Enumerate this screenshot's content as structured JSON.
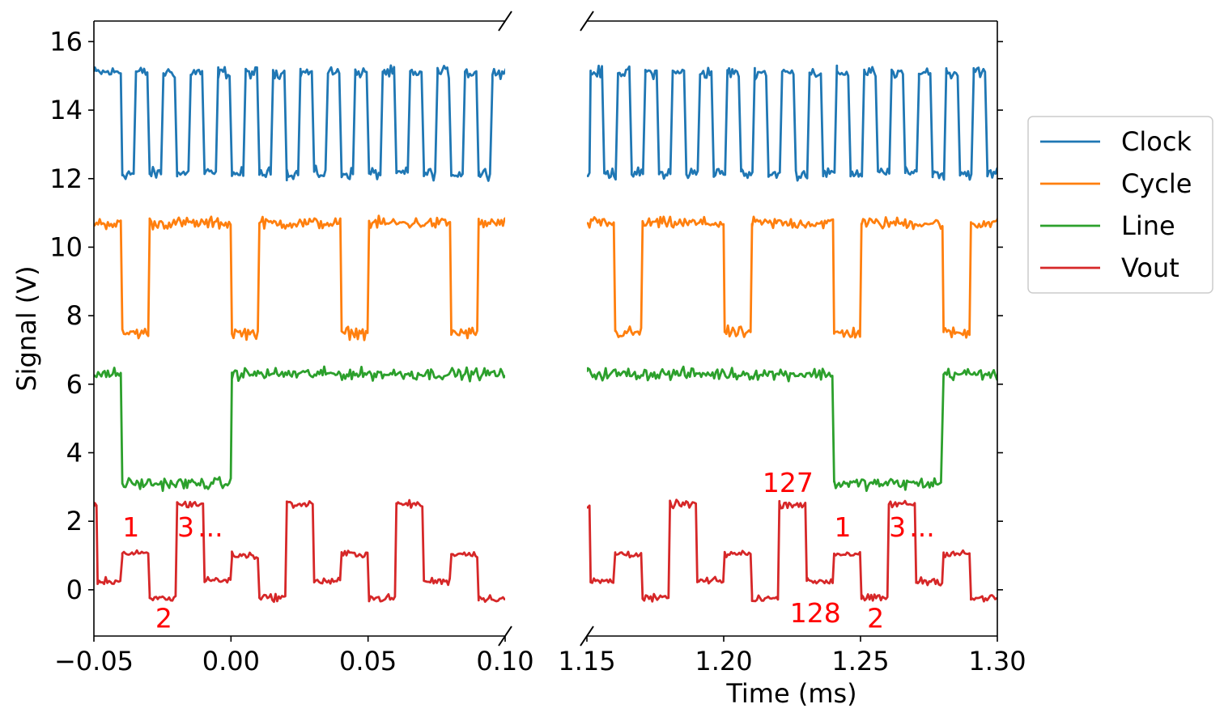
{
  "chart_data": {
    "type": "line",
    "title": "",
    "xlabel": "Time (ms)",
    "ylabel": "Signal (V)",
    "ylim": [
      -1.35,
      16.6
    ],
    "yticks": [
      0,
      2,
      4,
      6,
      8,
      10,
      12,
      14,
      16
    ],
    "grid": false,
    "legend_position": "right",
    "panels": [
      {
        "name": "left",
        "xlim": [
          -0.05,
          0.1
        ],
        "xticks": [
          -0.05,
          0.0,
          0.05,
          0.1
        ],
        "xtick_labels": [
          "−0.05",
          "0.00",
          "0.05",
          "0.10"
        ]
      },
      {
        "name": "right",
        "xlim": [
          1.15,
          1.3
        ],
        "xticks": [
          1.15,
          1.2,
          1.25,
          1.3
        ],
        "xtick_labels": [
          "1.15",
          "1.20",
          "1.25",
          "1.30"
        ]
      }
    ],
    "series": [
      {
        "name": "Clock",
        "color": "#1f77b4",
        "period_ms": 0.01,
        "low_v": 12.15,
        "high_v": 15.1,
        "noise_v": 0.13,
        "left_segments": [
          [
            -0.05,
            15.1
          ],
          [
            -0.04,
            12.15
          ],
          [
            -0.035,
            15.1
          ],
          [
            -0.03,
            12.15
          ],
          [
            -0.025,
            15.1
          ],
          [
            -0.02,
            12.15
          ],
          [
            -0.015,
            15.1
          ],
          [
            -0.01,
            12.15
          ],
          [
            -0.005,
            15.1
          ],
          [
            0.0,
            12.15
          ],
          [
            0.005,
            15.1
          ],
          [
            0.01,
            12.15
          ],
          [
            0.015,
            15.1
          ],
          [
            0.02,
            12.15
          ],
          [
            0.025,
            15.1
          ],
          [
            0.03,
            12.15
          ],
          [
            0.035,
            15.1
          ],
          [
            0.04,
            12.15
          ],
          [
            0.045,
            15.1
          ],
          [
            0.05,
            12.15
          ],
          [
            0.055,
            15.1
          ],
          [
            0.06,
            12.15
          ],
          [
            0.065,
            15.1
          ],
          [
            0.07,
            12.15
          ],
          [
            0.075,
            15.1
          ],
          [
            0.08,
            12.15
          ],
          [
            0.085,
            15.1
          ],
          [
            0.09,
            12.15
          ],
          [
            0.095,
            15.1
          ],
          [
            0.1,
            15.1
          ]
        ],
        "right_segments": [
          [
            1.15,
            12.15
          ],
          [
            1.151,
            15.1
          ],
          [
            1.156,
            12.15
          ],
          [
            1.161,
            15.1
          ],
          [
            1.166,
            12.15
          ],
          [
            1.171,
            15.1
          ],
          [
            1.176,
            12.15
          ],
          [
            1.181,
            15.1
          ],
          [
            1.186,
            12.15
          ],
          [
            1.191,
            15.1
          ],
          [
            1.196,
            12.15
          ],
          [
            1.201,
            15.1
          ],
          [
            1.206,
            12.15
          ],
          [
            1.211,
            15.1
          ],
          [
            1.216,
            12.15
          ],
          [
            1.221,
            15.1
          ],
          [
            1.226,
            12.15
          ],
          [
            1.231,
            15.1
          ],
          [
            1.236,
            12.15
          ],
          [
            1.241,
            15.1
          ],
          [
            1.246,
            12.15
          ],
          [
            1.251,
            15.1
          ],
          [
            1.256,
            12.15
          ],
          [
            1.261,
            15.1
          ],
          [
            1.266,
            12.15
          ],
          [
            1.271,
            15.1
          ],
          [
            1.276,
            12.15
          ],
          [
            1.281,
            15.1
          ],
          [
            1.286,
            12.15
          ],
          [
            1.291,
            15.1
          ],
          [
            1.296,
            12.15
          ],
          [
            1.3,
            12.15
          ]
        ]
      },
      {
        "name": "Cycle",
        "color": "#ff7f0e",
        "low_v": 7.5,
        "high_v": 10.7,
        "noise_v": 0.13,
        "left_segments": [
          [
            -0.05,
            10.7
          ],
          [
            -0.04,
            7.5
          ],
          [
            -0.03,
            10.7
          ],
          [
            0.0,
            7.5
          ],
          [
            0.01,
            10.7
          ],
          [
            0.04,
            7.5
          ],
          [
            0.05,
            10.7
          ],
          [
            0.08,
            7.5
          ],
          [
            0.09,
            10.7
          ],
          [
            0.1,
            10.7
          ]
        ],
        "right_segments": [
          [
            1.15,
            10.7
          ],
          [
            1.16,
            7.5
          ],
          [
            1.17,
            10.7
          ],
          [
            1.2,
            7.5
          ],
          [
            1.21,
            10.7
          ],
          [
            1.24,
            7.5
          ],
          [
            1.25,
            10.7
          ],
          [
            1.28,
            7.5
          ],
          [
            1.29,
            10.7
          ],
          [
            1.3,
            10.7
          ]
        ]
      },
      {
        "name": "Line",
        "color": "#2ca02c",
        "low_v": 3.1,
        "high_v": 6.3,
        "noise_v": 0.13,
        "left_segments": [
          [
            -0.05,
            6.3
          ],
          [
            -0.04,
            3.1
          ],
          [
            0.0,
            6.3
          ],
          [
            0.1,
            6.3
          ]
        ],
        "right_segments": [
          [
            1.15,
            6.3
          ],
          [
            1.24,
            3.1
          ],
          [
            1.28,
            6.3
          ],
          [
            1.3,
            6.3
          ]
        ]
      },
      {
        "name": "Vout",
        "color": "#d62728",
        "noise_v": 0.08,
        "left_segments": [
          [
            -0.05,
            2.4
          ],
          [
            -0.049,
            0.25
          ],
          [
            -0.04,
            1.05
          ],
          [
            -0.03,
            -0.25
          ],
          [
            -0.02,
            2.5
          ],
          [
            -0.01,
            0.28
          ],
          [
            0.0,
            1.0
          ],
          [
            0.01,
            -0.22
          ],
          [
            0.02,
            2.5
          ],
          [
            0.03,
            0.25
          ],
          [
            0.04,
            1.05
          ],
          [
            0.05,
            -0.25
          ],
          [
            0.06,
            2.5
          ],
          [
            0.07,
            0.25
          ],
          [
            0.08,
            1.05
          ],
          [
            0.09,
            -0.25
          ],
          [
            0.1,
            -0.25
          ]
        ],
        "right_segments": [
          [
            1.15,
            2.4
          ],
          [
            1.151,
            0.25
          ],
          [
            1.16,
            1.05
          ],
          [
            1.17,
            -0.25
          ],
          [
            1.18,
            2.5
          ],
          [
            1.19,
            0.25
          ],
          [
            1.2,
            1.05
          ],
          [
            1.21,
            -0.25
          ],
          [
            1.22,
            2.5
          ],
          [
            1.23,
            0.25
          ],
          [
            1.24,
            1.05
          ],
          [
            1.25,
            -0.25
          ],
          [
            1.26,
            2.5
          ],
          [
            1.27,
            0.25
          ],
          [
            1.28,
            1.05
          ],
          [
            1.29,
            -0.25
          ],
          [
            1.3,
            -0.25
          ]
        ]
      }
    ],
    "annotations": [
      {
        "panel": "left",
        "text": "1",
        "x": -0.0365,
        "y": 1.55
      },
      {
        "panel": "left",
        "text": "2",
        "x": -0.0245,
        "y": -1.1
      },
      {
        "panel": "left",
        "text": "3",
        "x": -0.0165,
        "y": 1.55
      },
      {
        "panel": "left",
        "text": "...",
        "x": -0.0075,
        "y": 1.55
      },
      {
        "panel": "right",
        "text": "127",
        "x": 1.2235,
        "y": 2.85
      },
      {
        "panel": "right",
        "text": "128",
        "x": 1.2335,
        "y": -0.95
      },
      {
        "panel": "right",
        "text": "1",
        "x": 1.2435,
        "y": 1.55
      },
      {
        "panel": "right",
        "text": "2",
        "x": 1.2555,
        "y": -1.1
      },
      {
        "panel": "right",
        "text": "3",
        "x": 1.2635,
        "y": 1.55
      },
      {
        "panel": "right",
        "text": "...",
        "x": 1.2725,
        "y": 1.55
      }
    ],
    "annotation_color": "#ff0000"
  }
}
